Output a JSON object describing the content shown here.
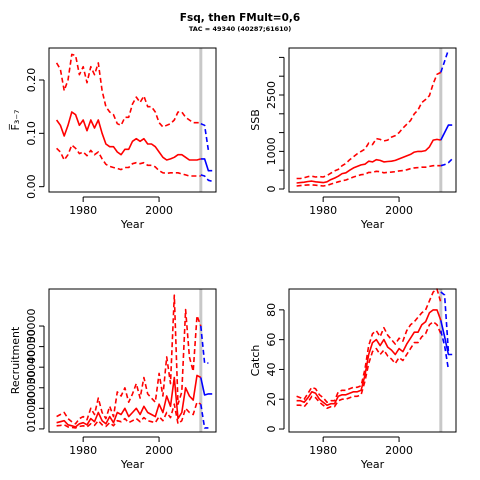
{
  "title": "Fsq, then FMult=0,6",
  "subtitle": "TAC = 49340 (40287;61610)",
  "chart_data": [
    {
      "type": "line",
      "ylabel": "F̅₃₋₇",
      "xlabel": "Year",
      "xlim": [
        1971,
        2015
      ],
      "ylim": [
        -0.01,
        0.26
      ],
      "xticks": [
        1980,
        2000
      ],
      "yticks": [
        0.0,
        0.1,
        0.2
      ],
      "ytick_labels": [
        "0.00",
        "0.10",
        "0.20"
      ],
      "vline_x": 2011,
      "years": [
        1973,
        1974,
        1975,
        1976,
        1977,
        1978,
        1979,
        1980,
        1981,
        1982,
        1983,
        1984,
        1985,
        1986,
        1987,
        1988,
        1989,
        1990,
        1991,
        1992,
        1993,
        1994,
        1995,
        1996,
        1997,
        1998,
        1999,
        2000,
        2001,
        2002,
        2003,
        2004,
        2005,
        2006,
        2007,
        2008,
        2009,
        2010,
        2011
      ],
      "series": [
        {
          "role": "estimate",
          "color": "#ff0000",
          "dash": false,
          "values": [
            0.125,
            0.115,
            0.095,
            0.115,
            0.14,
            0.135,
            0.115,
            0.125,
            0.105,
            0.125,
            0.11,
            0.125,
            0.1,
            0.08,
            0.075,
            0.075,
            0.065,
            0.06,
            0.07,
            0.07,
            0.085,
            0.09,
            0.085,
            0.09,
            0.08,
            0.08,
            0.075,
            0.065,
            0.055,
            0.05,
            0.052,
            0.055,
            0.06,
            0.06,
            0.055,
            0.05,
            0.05,
            0.05,
            0.052
          ]
        },
        {
          "role": "upper",
          "color": "#ff0000",
          "dash": true,
          "values": [
            0.232,
            0.22,
            0.18,
            0.2,
            0.248,
            0.246,
            0.21,
            0.225,
            0.195,
            0.225,
            0.21,
            0.232,
            0.18,
            0.15,
            0.14,
            0.135,
            0.118,
            0.115,
            0.13,
            0.13,
            0.155,
            0.168,
            0.158,
            0.17,
            0.15,
            0.15,
            0.14,
            0.12,
            0.112,
            0.115,
            0.118,
            0.125,
            0.14,
            0.14,
            0.13,
            0.125,
            0.12,
            0.12,
            0.12
          ]
        },
        {
          "role": "lower",
          "color": "#ff0000",
          "dash": true,
          "values": [
            0.072,
            0.065,
            0.05,
            0.06,
            0.078,
            0.072,
            0.062,
            0.065,
            0.058,
            0.068,
            0.06,
            0.065,
            0.052,
            0.042,
            0.038,
            0.036,
            0.034,
            0.032,
            0.036,
            0.036,
            0.043,
            0.045,
            0.043,
            0.045,
            0.04,
            0.04,
            0.037,
            0.03,
            0.026,
            0.025,
            0.026,
            0.026,
            0.026,
            0.024,
            0.022,
            0.02,
            0.02,
            0.02,
            0.02
          ]
        },
        {
          "role": "projection",
          "color": "#0000ff",
          "dash": false,
          "years": [
            2011,
            2012,
            2013,
            2014
          ],
          "values": [
            0.052,
            0.052,
            0.03,
            0.03
          ]
        },
        {
          "role": "projection-upper",
          "color": "#0000ff",
          "dash": true,
          "years": [
            2011,
            2012,
            2013
          ],
          "values": [
            0.118,
            0.115,
            0.068
          ]
        },
        {
          "role": "projection-lower",
          "color": "#0000ff",
          "dash": true,
          "years": [
            2011,
            2012,
            2013,
            2014
          ],
          "values": [
            0.022,
            0.02,
            0.012,
            0.01
          ]
        }
      ]
    },
    {
      "type": "line",
      "ylabel": "SSB",
      "xlabel": "Year",
      "xlim": [
        1971,
        2015
      ],
      "ylim": [
        -80,
        3750
      ],
      "xticks": [
        1980,
        2000
      ],
      "yticks": [
        0,
        1000,
        2500
      ],
      "ytick_labels": [
        "0",
        "1000",
        "2500"
      ],
      "extra_ticks": [
        500,
        1500,
        2000,
        3000,
        3500
      ],
      "vline_x": 2011,
      "years": [
        1973,
        1974,
        1975,
        1976,
        1977,
        1978,
        1979,
        1980,
        1981,
        1982,
        1983,
        1984,
        1985,
        1986,
        1987,
        1988,
        1989,
        1990,
        1991,
        1992,
        1993,
        1994,
        1995,
        1996,
        1997,
        1998,
        1999,
        2000,
        2001,
        2002,
        2003,
        2004,
        2005,
        2006,
        2007,
        2008,
        2009,
        2010,
        2011
      ],
      "series": [
        {
          "role": "estimate",
          "color": "#ff0000",
          "dash": false,
          "values": [
            160,
            170,
            180,
            200,
            210,
            190,
            180,
            170,
            190,
            250,
            290,
            340,
            410,
            430,
            500,
            560,
            600,
            640,
            660,
            740,
            720,
            780,
            760,
            720,
            730,
            740,
            760,
            800,
            840,
            880,
            920,
            980,
            1000,
            1000,
            1020,
            1120,
            1300,
            1320,
            1300
          ]
        },
        {
          "role": "upper",
          "color": "#ff0000",
          "dash": true,
          "values": [
            280,
            280,
            300,
            330,
            340,
            320,
            330,
            320,
            360,
            420,
            480,
            520,
            620,
            680,
            780,
            860,
            940,
            1000,
            1060,
            1220,
            1180,
            1340,
            1320,
            1280,
            1300,
            1380,
            1420,
            1500,
            1620,
            1720,
            1820,
            2000,
            2100,
            2300,
            2380,
            2480,
            2800,
            3050,
            3100
          ]
        },
        {
          "role": "lower",
          "color": "#ff0000",
          "dash": true,
          "values": [
            80,
            90,
            100,
            110,
            110,
            100,
            90,
            80,
            95,
            130,
            160,
            190,
            220,
            240,
            280,
            320,
            350,
            380,
            390,
            440,
            440,
            470,
            460,
            430,
            440,
            450,
            460,
            480,
            490,
            510,
            540,
            560,
            570,
            580,
            580,
            600,
            620,
            620,
            620
          ]
        },
        {
          "role": "projection",
          "color": "#0000ff",
          "dash": false,
          "years": [
            2011,
            2012,
            2013,
            2014
          ],
          "values": [
            1300,
            1500,
            1700,
            1700
          ]
        },
        {
          "role": "projection-upper",
          "color": "#0000ff",
          "dash": true,
          "years": [
            2011,
            2012,
            2013
          ],
          "values": [
            3100,
            3400,
            3700
          ]
        },
        {
          "role": "projection-lower",
          "color": "#0000ff",
          "dash": true,
          "years": [
            2011,
            2012,
            2013,
            2014
          ],
          "values": [
            620,
            650,
            700,
            800
          ]
        }
      ]
    },
    {
      "type": "line",
      "ylabel": "Recruitment",
      "xlabel": "Year",
      "xlim": [
        1971,
        2015
      ],
      "ylim": [
        -1500,
        68000
      ],
      "xticks": [
        1980,
        2000
      ],
      "yticks": [
        0,
        10000,
        20000,
        30000,
        40000,
        50000
      ],
      "ytick_labels": [
        "0",
        "10000",
        "20000",
        "30000",
        "40000",
        "50000"
      ],
      "vline_x": 2011,
      "years": [
        1973,
        1974,
        1975,
        1976,
        1977,
        1978,
        1979,
        1980,
        1981,
        1982,
        1983,
        1984,
        1985,
        1986,
        1987,
        1988,
        1989,
        1990,
        1991,
        1992,
        1993,
        1994,
        1995,
        1996,
        1997,
        1998,
        1999,
        2000,
        2001,
        2002,
        2003,
        2004,
        2005,
        2006,
        2007,
        2008,
        2009,
        2010,
        2011
      ],
      "series": [
        {
          "role": "estimate",
          "color": "#ff0000",
          "dash": false,
          "values": [
            3000,
            3500,
            4000,
            2000,
            1500,
            1000,
            2500,
            3000,
            2000,
            5000,
            3500,
            8000,
            4000,
            2500,
            6000,
            3000,
            8000,
            7000,
            10000,
            6000,
            8000,
            10000,
            7000,
            11000,
            8000,
            7000,
            6000,
            12000,
            8000,
            16000,
            11000,
            25000,
            5000,
            8000,
            20000,
            16000,
            14000,
            26000,
            25000
          ]
        },
        {
          "role": "upper",
          "color": "#ff0000",
          "dash": true,
          "values": [
            6000,
            7000,
            8000,
            5000,
            3500,
            2500,
            5000,
            6000,
            4500,
            10000,
            7000,
            15000,
            8000,
            5000,
            11000,
            6000,
            18000,
            16000,
            20000,
            13000,
            17000,
            22000,
            15000,
            25000,
            17000,
            15000,
            13000,
            27000,
            16000,
            35000,
            22000,
            65000,
            12000,
            18000,
            58000,
            35000,
            28000,
            55000,
            50000
          ]
        },
        {
          "role": "lower",
          "color": "#ff0000",
          "dash": true,
          "values": [
            1500,
            1700,
            2000,
            1000,
            700,
            500,
            1200,
            1500,
            1000,
            2500,
            1700,
            4000,
            2000,
            1200,
            3000,
            1500,
            4000,
            3500,
            5000,
            3000,
            4000,
            5000,
            3500,
            5500,
            4000,
            3500,
            3000,
            6000,
            4000,
            8000,
            5500,
            12000,
            2500,
            4000,
            10000,
            8000,
            7000,
            13000,
            12000
          ]
        },
        {
          "role": "projection",
          "color": "#0000ff",
          "dash": false,
          "years": [
            2011,
            2012,
            2013,
            2014
          ],
          "values": [
            25000,
            16500,
            17000,
            17000
          ]
        },
        {
          "role": "projection-upper",
          "color": "#0000ff",
          "dash": true,
          "years": [
            2011,
            2012,
            2013
          ],
          "values": [
            50000,
            32000,
            32000
          ]
        },
        {
          "role": "projection-lower",
          "color": "#0000ff",
          "dash": true,
          "years": [
            2011,
            2012,
            2013
          ],
          "values": [
            12000,
            500,
            500
          ]
        }
      ]
    },
    {
      "type": "line",
      "ylabel": "Catch",
      "xlabel": "Year",
      "xlim": [
        1971,
        2015
      ],
      "ylim": [
        -2,
        94
      ],
      "xticks": [
        1980,
        2000
      ],
      "yticks": [
        0,
        20,
        40,
        60,
        80
      ],
      "ytick_labels": [
        "0",
        "20",
        "40",
        "60",
        "80"
      ],
      "vline_x": 2011,
      "years": [
        1973,
        1974,
        1975,
        1976,
        1977,
        1978,
        1979,
        1980,
        1981,
        1982,
        1983,
        1984,
        1985,
        1986,
        1987,
        1988,
        1989,
        1990,
        1991,
        1992,
        1993,
        1994,
        1995,
        1996,
        1997,
        1998,
        1999,
        2000,
        2001,
        2002,
        2003,
        2004,
        2005,
        2006,
        2007,
        2008,
        2009,
        2010,
        2011
      ],
      "series": [
        {
          "role": "estimate",
          "color": "#ff0000",
          "dash": false,
          "values": [
            19,
            19,
            18,
            21,
            25,
            24,
            20,
            18,
            16,
            17,
            17,
            22,
            23,
            23,
            24,
            25,
            25,
            26,
            36,
            50,
            58,
            60,
            56,
            60,
            55,
            53,
            50,
            54,
            52,
            57,
            61,
            65,
            65,
            70,
            72,
            78,
            80,
            80,
            73
          ]
        },
        {
          "role": "upper",
          "color": "#ff0000",
          "dash": true,
          "values": [
            22,
            21,
            20,
            24,
            28,
            27,
            23,
            21,
            18,
            19,
            19,
            25,
            26,
            26,
            27,
            28,
            28,
            29,
            40,
            56,
            64,
            66,
            62,
            68,
            63,
            60,
            57,
            61,
            59,
            66,
            70,
            72,
            75,
            78,
            80,
            86,
            92,
            94,
            85
          ]
        },
        {
          "role": "lower",
          "color": "#ff0000",
          "dash": true,
          "values": [
            16,
            16,
            15,
            18,
            22,
            21,
            18,
            16,
            14,
            15,
            15,
            19,
            20,
            20,
            21,
            22,
            22,
            23,
            32,
            44,
            52,
            54,
            50,
            53,
            49,
            47,
            44,
            48,
            46,
            50,
            54,
            58,
            58,
            62,
            64,
            70,
            72,
            70,
            64
          ]
        },
        {
          "role": "projection",
          "color": "#0000ff",
          "dash": false,
          "years": [
            2011,
            2012,
            2013,
            2014
          ],
          "values": [
            73,
            62,
            50,
            50
          ]
        },
        {
          "role": "projection-upper",
          "color": "#0000ff",
          "dash": true,
          "years": [
            2011,
            2012,
            2013
          ],
          "values": [
            92,
            90,
            52
          ]
        },
        {
          "role": "projection-lower",
          "color": "#0000ff",
          "dash": true,
          "years": [
            2011,
            2012,
            2013
          ],
          "values": [
            66,
            56,
            40
          ]
        }
      ]
    }
  ]
}
